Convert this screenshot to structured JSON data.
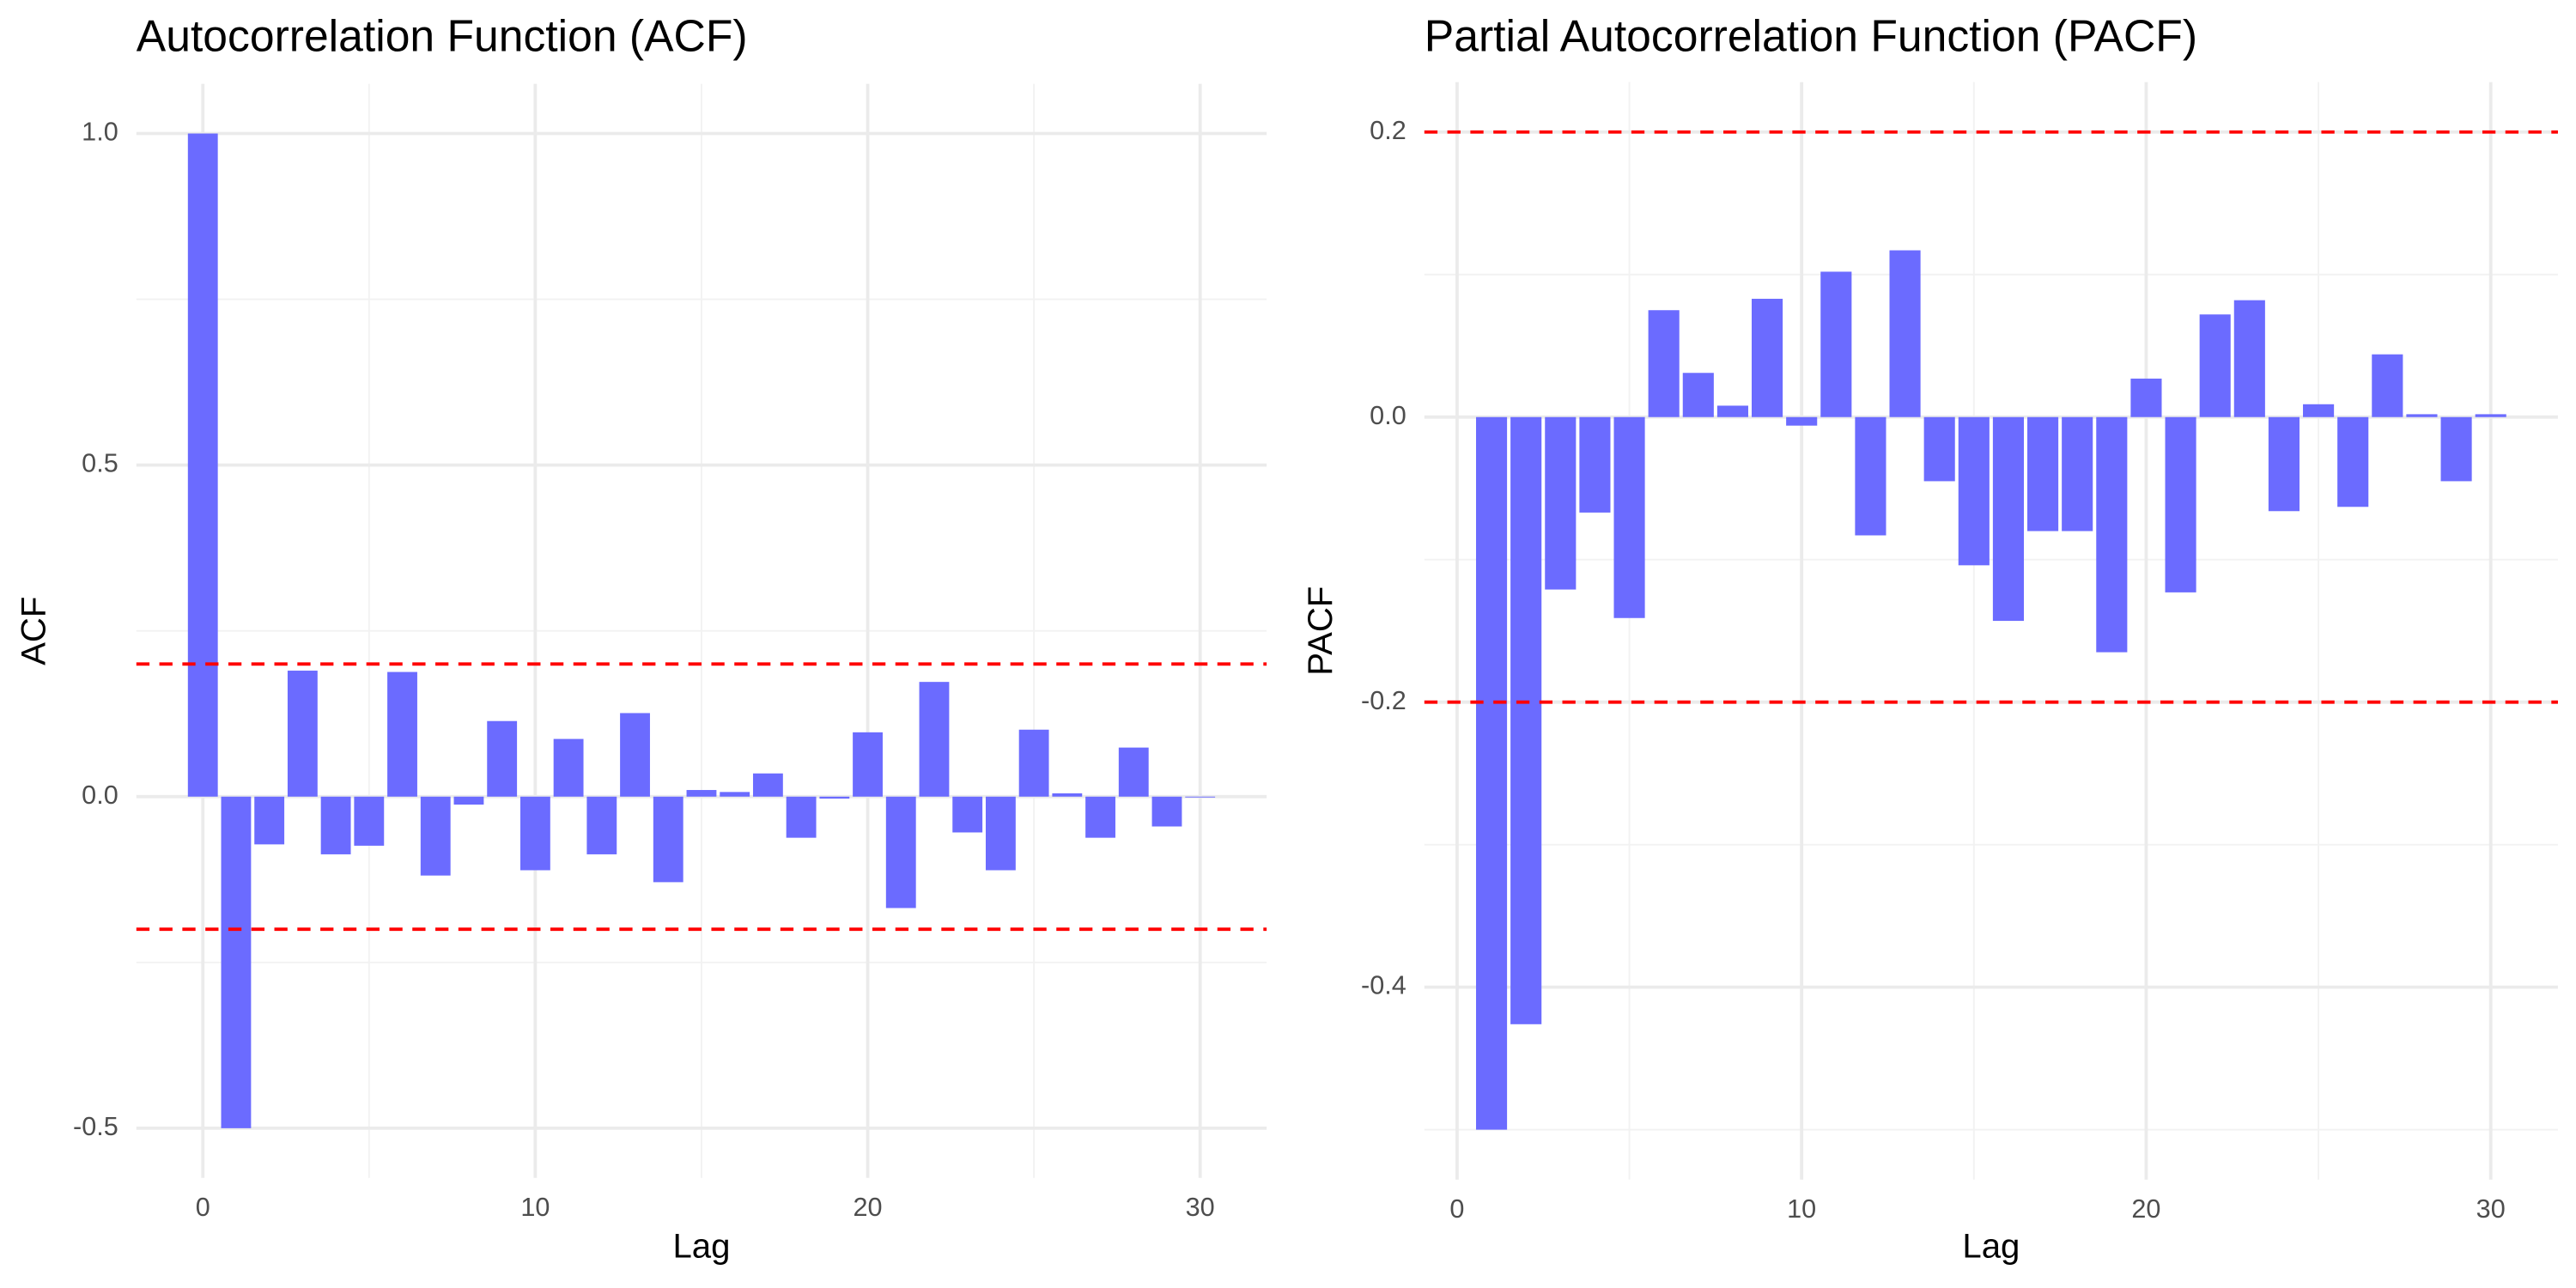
{
  "chart_data": [
    {
      "type": "bar",
      "title": "Autocorrelation Function (ACF)",
      "x_label": "Lag",
      "y_label": "ACF",
      "x": [
        0,
        1,
        2,
        3,
        4,
        5,
        6,
        7,
        8,
        9,
        10,
        11,
        12,
        13,
        14,
        15,
        16,
        17,
        18,
        19,
        20,
        21,
        22,
        23,
        24,
        25,
        26,
        27,
        28,
        29,
        30
      ],
      "values": [
        1.0,
        -0.5,
        -0.072,
        0.19,
        -0.087,
        -0.074,
        0.188,
        -0.119,
        -0.012,
        0.114,
        -0.111,
        0.087,
        -0.087,
        0.126,
        -0.129,
        0.01,
        0.007,
        0.035,
        -0.062,
        -0.003,
        0.097,
        -0.168,
        0.173,
        -0.054,
        -0.111,
        0.101,
        0.005,
        -0.062,
        0.074,
        -0.045,
        -0.001
      ],
      "color": "#6b6bff",
      "hlines": [
        0.2,
        -0.2
      ],
      "hline_color": "#ff0000",
      "xlim": [
        -2,
        32
      ],
      "xticks": [
        0,
        10,
        20,
        30
      ],
      "ylim": [
        -0.575,
        1.075
      ],
      "yticks": [
        {
          "value": -0.5,
          "label": "-0.5"
        },
        {
          "value": 0,
          "label": "0.0"
        },
        {
          "value": 0.5,
          "label": "0.5"
        },
        {
          "value": 1,
          "label": "1.0"
        }
      ],
      "grid": true
    },
    {
      "type": "bar",
      "title": "Partial Autocorrelation Function (PACF)",
      "x_label": "Lag",
      "y_label": "PACF",
      "x": [
        1,
        2,
        3,
        4,
        5,
        6,
        7,
        8,
        9,
        10,
        11,
        12,
        13,
        14,
        15,
        16,
        17,
        18,
        19,
        20,
        21,
        22,
        23,
        24,
        25,
        26,
        27,
        28,
        29,
        30
      ],
      "values": [
        -0.5,
        -0.426,
        -0.121,
        -0.067,
        -0.141,
        0.075,
        0.031,
        0.008,
        0.083,
        -0.006,
        0.102,
        -0.083,
        0.117,
        -0.045,
        -0.104,
        -0.143,
        -0.08,
        -0.08,
        -0.165,
        0.027,
        -0.123,
        0.072,
        0.082,
        -0.066,
        0.009,
        -0.063,
        0.044,
        0.002,
        -0.045,
        0.002
      ],
      "color": "#6b6bff",
      "hlines": [
        0.2,
        -0.2
      ],
      "hline_color": "#ff0000",
      "xlim": [
        -0.95,
        31.95
      ],
      "xticks": [
        0,
        10,
        20,
        30
      ],
      "ylim": [
        -0.535,
        0.235
      ],
      "yticks": [
        {
          "value": -0.4,
          "label": "-0.4"
        },
        {
          "value": -0.2,
          "label": "-0.2"
        },
        {
          "value": 0,
          "label": "0.0"
        },
        {
          "value": 0.2,
          "label": "0.2"
        }
      ],
      "grid": true
    }
  ]
}
